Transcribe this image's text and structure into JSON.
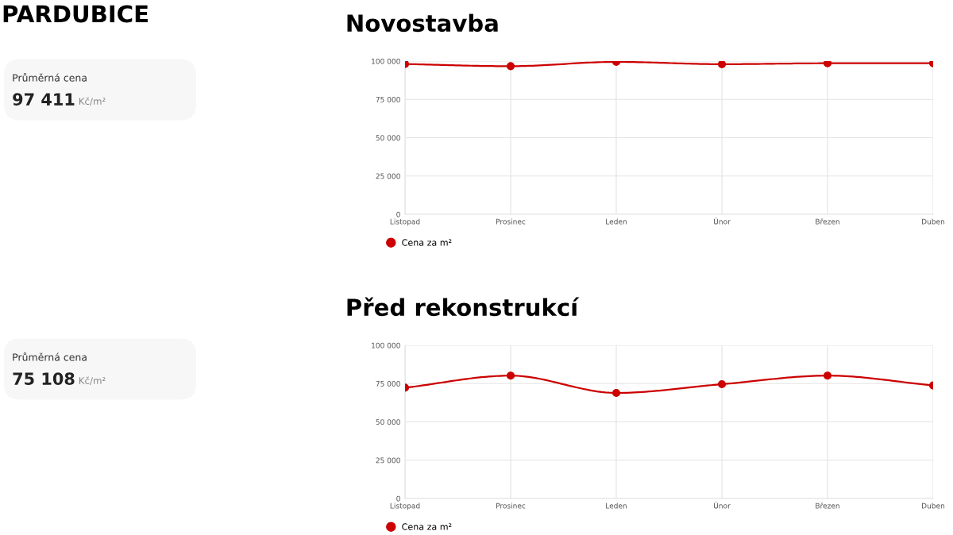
{
  "chart_data": [
    {
      "type": "other",
      "title": "PARDUBICE",
      "annotations": [
        "Průměrná cena",
        "97 411",
        "Kč/m²"
      ]
    },
    {
      "type": "line",
      "title": "Novostavba",
      "categories": [
        "Listopad",
        "Prosinec",
        "Leden",
        "Únor",
        "Březen",
        "Duben"
      ],
      "series": [
        {
          "name": "Cena za m²",
          "color": "#cc0000",
          "values": [
            98100,
            96700,
            99500,
            98000,
            98600,
            98600
          ]
        }
      ],
      "ylim": [
        0,
        100000
      ],
      "yticks": [
        0,
        {
          "value": 25000,
          "label": "25 000"
        },
        {
          "value": 50000,
          "label": "50 000"
        },
        {
          "value": 75000,
          "label": "75 000"
        },
        {
          "value": 100000,
          "label": "100 000"
        }
      ],
      "grid": true,
      "legend": "bottom left",
      "marker": "circle",
      "line_style": "solid"
    },
    {
      "type": "other",
      "annotations": [
        "Průměrná cena",
        "75 108",
        "Kč/m²"
      ]
    },
    {
      "type": "line",
      "title": "Před rekonstrukcí",
      "categories": [
        "Listopad",
        "Prosinec",
        "Leden",
        "Únor",
        "Březen",
        "Duben"
      ],
      "series": [
        {
          "name": "Cena za m²",
          "color": "#cc0000",
          "values": [
            72300,
            80200,
            68900,
            74600,
            80200,
            73800
          ]
        }
      ],
      "ylim": [
        0,
        100000
      ],
      "yticks": [
        0,
        {
          "value": 25000,
          "label": "25 000"
        },
        {
          "value": 50000,
          "label": "50 000"
        },
        {
          "value": 75000,
          "label": "75 000"
        },
        {
          "value": 100000,
          "label": "100 000"
        }
      ],
      "grid": true,
      "legend": "bottom left",
      "marker": "circle",
      "line_style": "solid"
    }
  ]
}
